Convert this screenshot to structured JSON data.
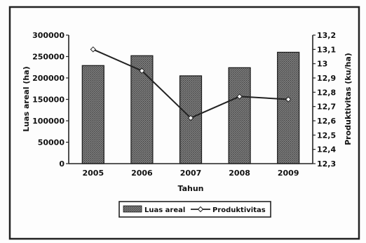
{
  "chart_data": {
    "type": "bar",
    "categories": [
      "2005",
      "2006",
      "2007",
      "2008",
      "2009"
    ],
    "series": [
      {
        "name": "Luas areal",
        "type": "bar",
        "axis": "left",
        "values": [
          229000,
          252000,
          205000,
          224000,
          260000
        ]
      },
      {
        "name": "Produktivitas",
        "type": "line",
        "axis": "right",
        "values": [
          13.1,
          12.95,
          12.62,
          12.77,
          12.75
        ]
      }
    ],
    "xlabel": "Tahun",
    "ylabel": "Luas areal (ha)",
    "y2label": "Produktivitas (ku/ha)",
    "ylim": [
      0,
      300000
    ],
    "y2lim": [
      12.3,
      13.2
    ],
    "yticks": [
      "0",
      "50000",
      "100000",
      "150000",
      "200000",
      "250000",
      "300000"
    ],
    "y2ticks": [
      "12,3",
      "12,4",
      "12,5",
      "12,6",
      "12,7",
      "12,8",
      "12,9",
      "13",
      "13,1",
      "13,2"
    ],
    "grid": false,
    "legend_position": "bottom",
    "colors": {
      "bar_fill": "#6e6e6e",
      "bar_stroke": "#1a1a1a",
      "line": "#222222",
      "frame": "#222222"
    }
  }
}
